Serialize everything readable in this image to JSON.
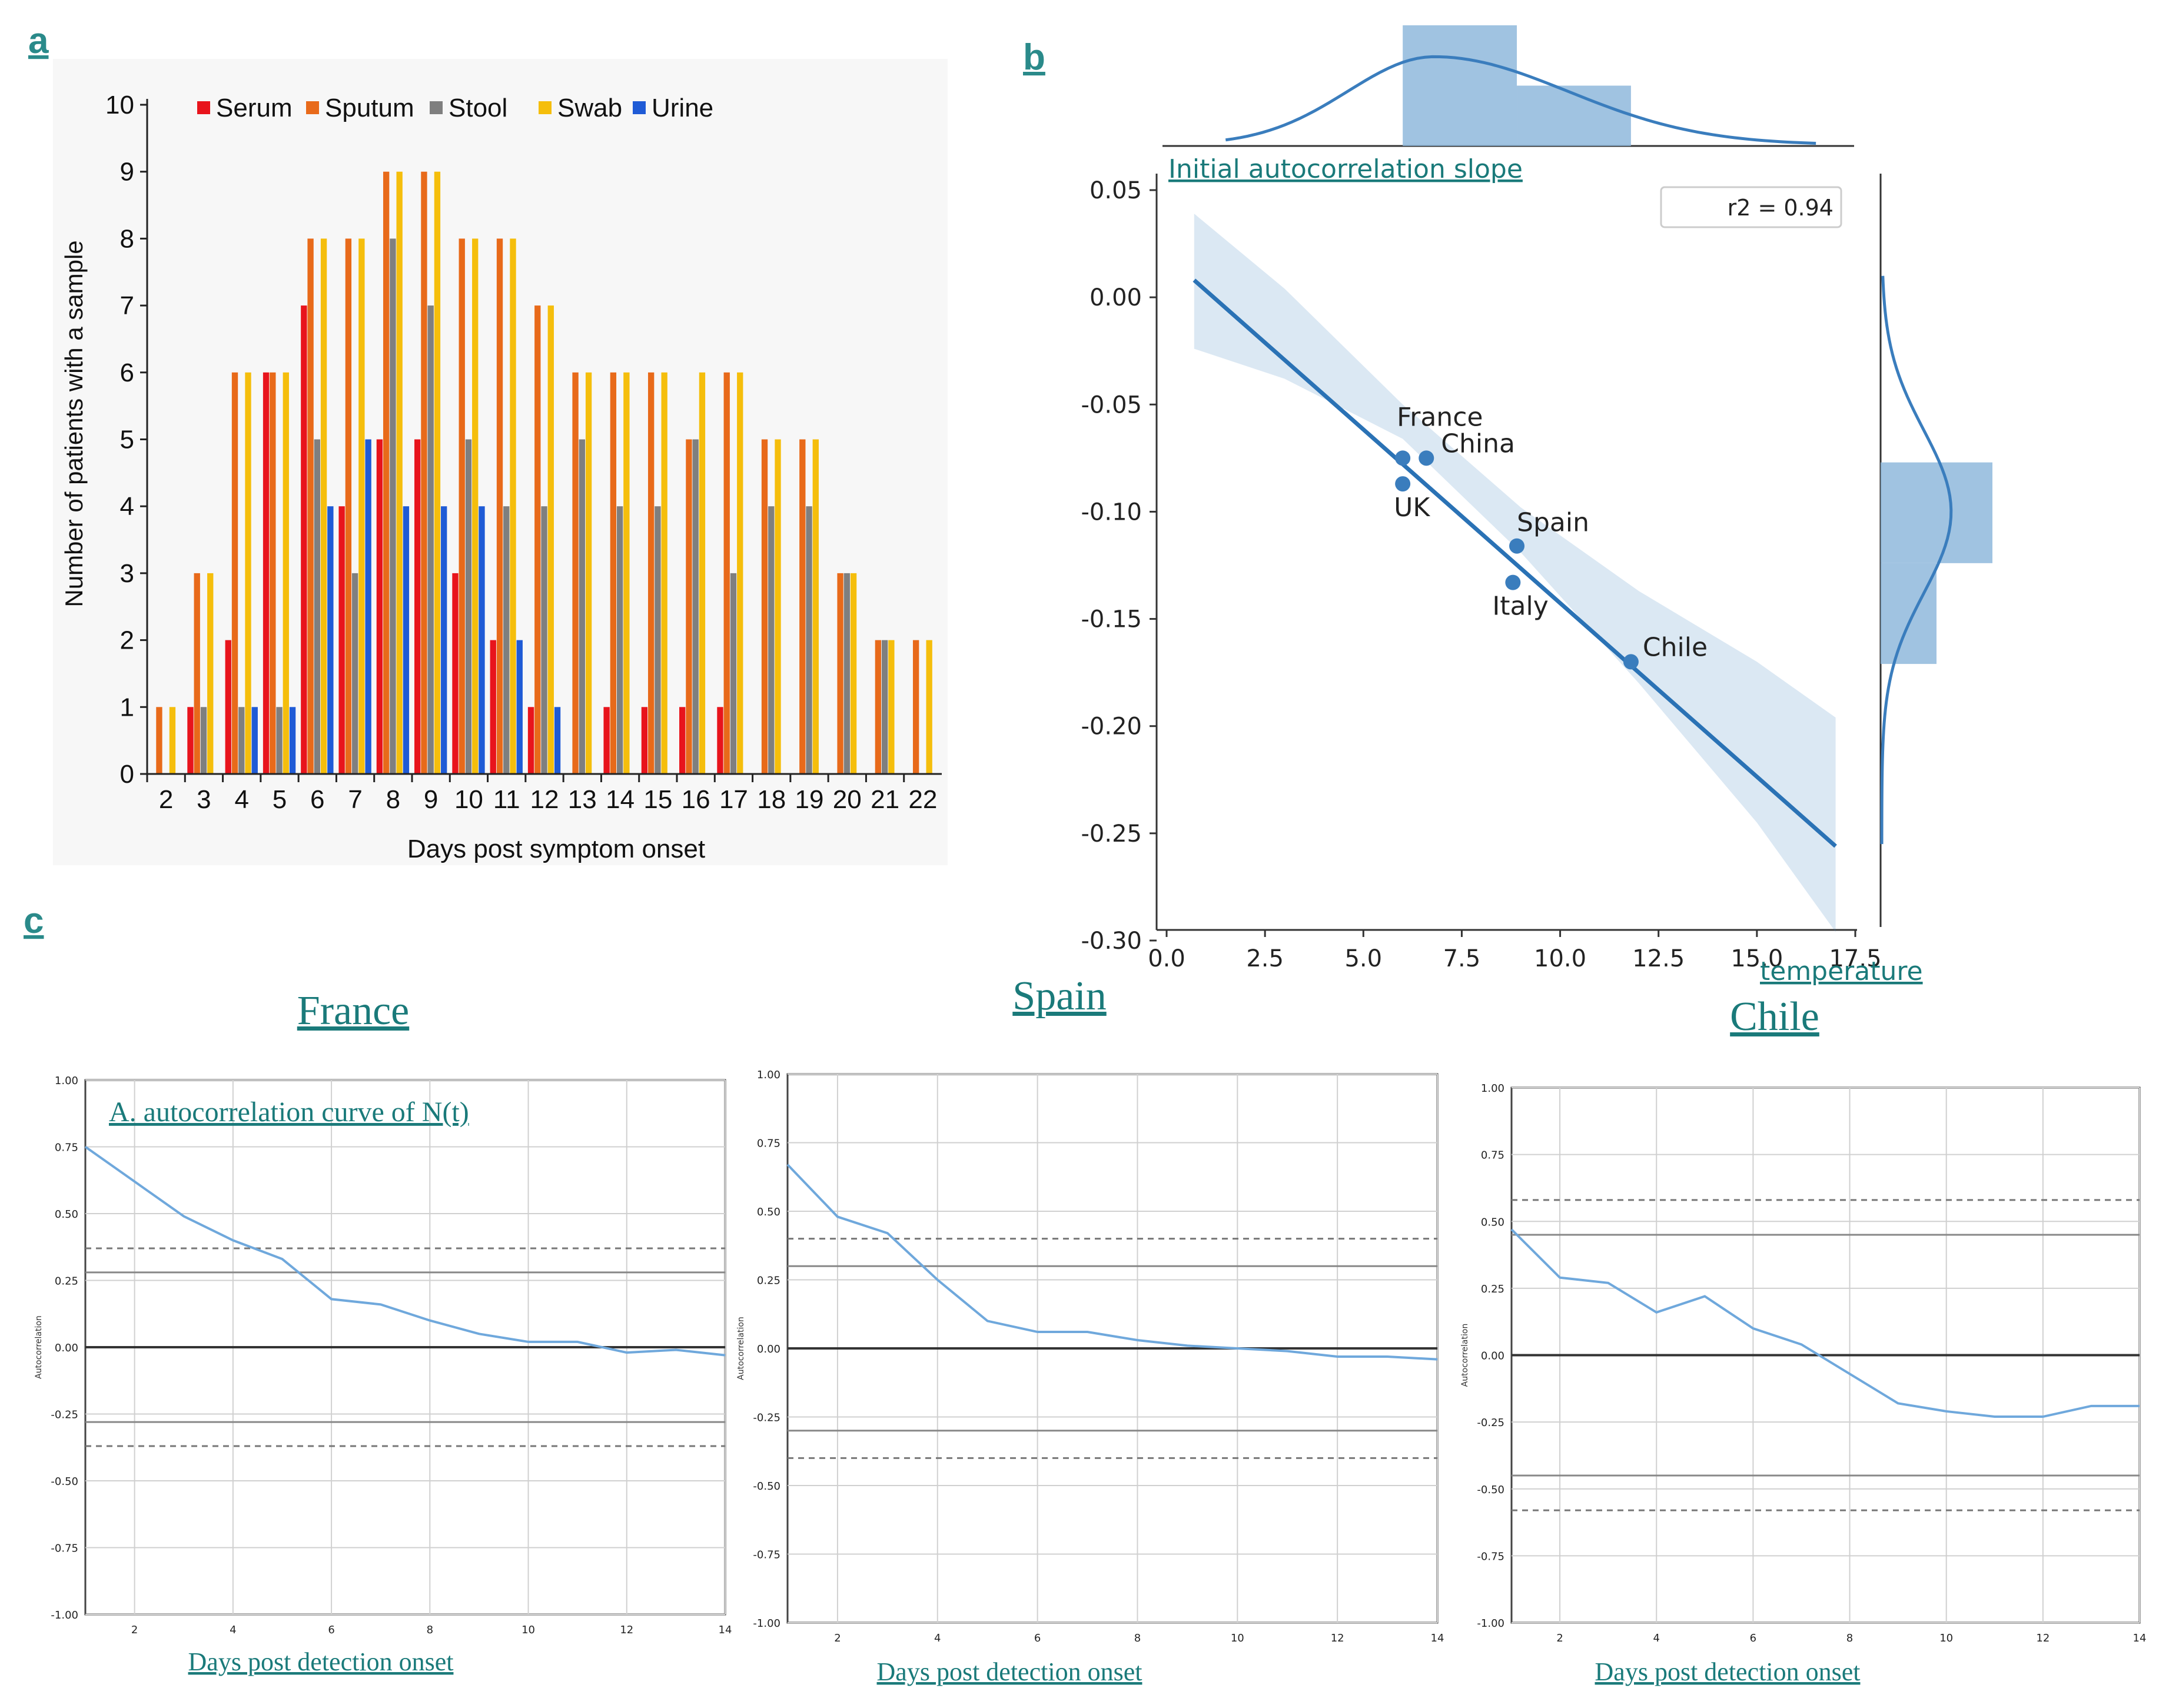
{
  "panel_letters": {
    "a": "a",
    "b": "b",
    "c": "c"
  },
  "chart_data": [
    {
      "id": "a",
      "type": "bar",
      "xlabel": "Days post symptom onset",
      "ylabel": "Number of patients with a sample",
      "ylim": [
        0,
        10
      ],
      "legend_position": "top",
      "categories": [
        "2",
        "3",
        "4",
        "5",
        "6",
        "7",
        "8",
        "9",
        "10",
        "11",
        "12",
        "13",
        "14",
        "15",
        "16",
        "17",
        "18",
        "19",
        "20",
        "21",
        "22"
      ],
      "series": [
        {
          "name": "Serum",
          "color": "#e8141c",
          "values": [
            0,
            1,
            2,
            6,
            7,
            4,
            5,
            5,
            3,
            2,
            1,
            0,
            1,
            1,
            1,
            1,
            0,
            0,
            0,
            0,
            0
          ]
        },
        {
          "name": "Sputum",
          "color": "#e86a1a",
          "values": [
            1,
            3,
            6,
            6,
            8,
            8,
            9,
            9,
            8,
            8,
            7,
            6,
            6,
            6,
            5,
            6,
            5,
            5,
            3,
            2,
            2
          ]
        },
        {
          "name": "Stool",
          "color": "#7f7f7f",
          "values": [
            0,
            1,
            1,
            1,
            5,
            3,
            8,
            7,
            5,
            4,
            4,
            5,
            4,
            4,
            5,
            3,
            4,
            4,
            3,
            2,
            0
          ]
        },
        {
          "name": "Swab",
          "color": "#f5be0c",
          "values": [
            1,
            3,
            6,
            6,
            8,
            8,
            9,
            9,
            8,
            8,
            7,
            6,
            6,
            6,
            6,
            6,
            5,
            5,
            3,
            2,
            2
          ]
        },
        {
          "name": "Urine",
          "color": "#1f5bd6",
          "values": [
            0,
            0,
            1,
            1,
            4,
            5,
            4,
            4,
            4,
            2,
            1,
            0,
            0,
            0,
            0,
            0,
            0,
            0,
            0,
            0,
            0
          ]
        }
      ]
    },
    {
      "id": "b",
      "type": "scatter",
      "xlabel": "temperature",
      "ylabel": "Initial autocorrelation slope",
      "xlim": [
        0,
        17.5
      ],
      "ylim": [
        -0.3,
        0.05
      ],
      "xticks": [
        "0.0",
        "2.5",
        "5.0",
        "7.5",
        "10.0",
        "12.5",
        "15.0",
        "17.5"
      ],
      "yticks": [
        "0.05",
        "0.00",
        "-0.05",
        "-0.10",
        "-0.15",
        "-0.20",
        "-0.25",
        "-0.30"
      ],
      "annotation": "r2 = 0.94",
      "color": "#3a7dbd",
      "points": [
        {
          "label": "France",
          "x": 6.0,
          "y": -0.075
        },
        {
          "label": "China",
          "x": 6.6,
          "y": -0.075
        },
        {
          "label": "UK",
          "x": 6.0,
          "y": -0.087
        },
        {
          "label": "Spain",
          "x": 8.9,
          "y": -0.116
        },
        {
          "label": "Italy",
          "x": 8.8,
          "y": -0.133
        },
        {
          "label": "Chile",
          "x": 11.8,
          "y": -0.17
        }
      ],
      "fit": {
        "x": [
          0.7,
          17.0
        ],
        "y": [
          0.008,
          -0.256
        ]
      },
      "confidence_band": {
        "x": [
          0.7,
          3,
          6,
          9,
          12,
          15,
          17
        ],
        "upper": [
          0.039,
          0.004,
          -0.05,
          -0.098,
          -0.137,
          -0.17,
          -0.196
        ],
        "lower": [
          -0.024,
          -0.038,
          -0.066,
          -0.119,
          -0.18,
          -0.245,
          -0.296
        ]
      },
      "top_histogram": {
        "bins": [
          [
            6,
            8.9,
            1.0
          ],
          [
            8.9,
            11.8,
            0.5
          ]
        ],
        "kde_range": [
          1.5,
          16.5
        ],
        "kde_peak": 6.8
      },
      "right_histogram": {
        "bins": [
          [
            -0.124,
            -0.077,
            1.0
          ],
          [
            -0.171,
            -0.124,
            0.5
          ]
        ],
        "kde_range": [
          -0.255,
          0.01
        ],
        "kde_peak": -0.1
      }
    },
    {
      "id": "c-france",
      "type": "line",
      "title": "France",
      "inset_label": "A. autocorrelation curve of N(t)",
      "xlabel": "Days post detection onset",
      "ylabel": "Autocorrelation",
      "xlim": [
        1,
        14
      ],
      "ylim": [
        -1,
        1
      ],
      "xticks": [
        "2",
        "4",
        "6",
        "8",
        "10",
        "12",
        "14"
      ],
      "yticks": [
        "1.00",
        "0.75",
        "0.50",
        "0.25",
        "0.00",
        "-0.25",
        "-0.50",
        "-0.75",
        "-1.00"
      ],
      "confidence_solid": 0.28,
      "confidence_dashed": 0.37,
      "x": [
        1,
        2,
        3,
        4,
        5,
        6,
        7,
        8,
        9,
        10,
        11,
        12,
        13,
        14
      ],
      "y": [
        0.75,
        0.62,
        0.49,
        0.4,
        0.33,
        0.18,
        0.16,
        0.1,
        0.05,
        0.02,
        0.02,
        -0.02,
        -0.01,
        -0.03
      ]
    },
    {
      "id": "c-spain",
      "type": "line",
      "title": "Spain",
      "xlabel": "Days post detection onset",
      "ylabel": "Autocorrelation",
      "xlim": [
        1,
        14
      ],
      "ylim": [
        -1,
        1
      ],
      "xticks": [
        "2",
        "4",
        "6",
        "8",
        "10",
        "12",
        "14"
      ],
      "yticks": [
        "1.00",
        "0.75",
        "0.50",
        "0.25",
        "0.00",
        "-0.25",
        "-0.50",
        "-0.75",
        "-1.00"
      ],
      "confidence_solid": 0.3,
      "confidence_dashed": 0.4,
      "x": [
        1,
        2,
        3,
        4,
        5,
        6,
        7,
        8,
        9,
        10,
        11,
        12,
        13,
        14
      ],
      "y": [
        0.67,
        0.48,
        0.42,
        0.25,
        0.1,
        0.06,
        0.06,
        0.03,
        0.01,
        0.0,
        -0.01,
        -0.03,
        -0.03,
        -0.04
      ]
    },
    {
      "id": "c-chile",
      "type": "line",
      "title": "Chile",
      "xlabel": "Days post detection onset",
      "ylabel": "Autocorrelation",
      "xlim": [
        1,
        14
      ],
      "ylim": [
        -1,
        1
      ],
      "xticks": [
        "2",
        "4",
        "6",
        "8",
        "10",
        "12",
        "14"
      ],
      "yticks": [
        "1.00",
        "0.75",
        "0.50",
        "0.25",
        "0.00",
        "-0.25",
        "-0.50",
        "-0.75",
        "-1.00"
      ],
      "confidence_solid": 0.45,
      "confidence_dashed": 0.58,
      "x": [
        1,
        2,
        3,
        4,
        5,
        6,
        7,
        8,
        9,
        10,
        11,
        12,
        13,
        14
      ],
      "y": [
        0.47,
        0.29,
        0.27,
        0.16,
        0.22,
        0.1,
        0.04,
        -0.07,
        -0.18,
        -0.21,
        -0.23,
        -0.23,
        -0.19,
        -0.19
      ]
    }
  ]
}
